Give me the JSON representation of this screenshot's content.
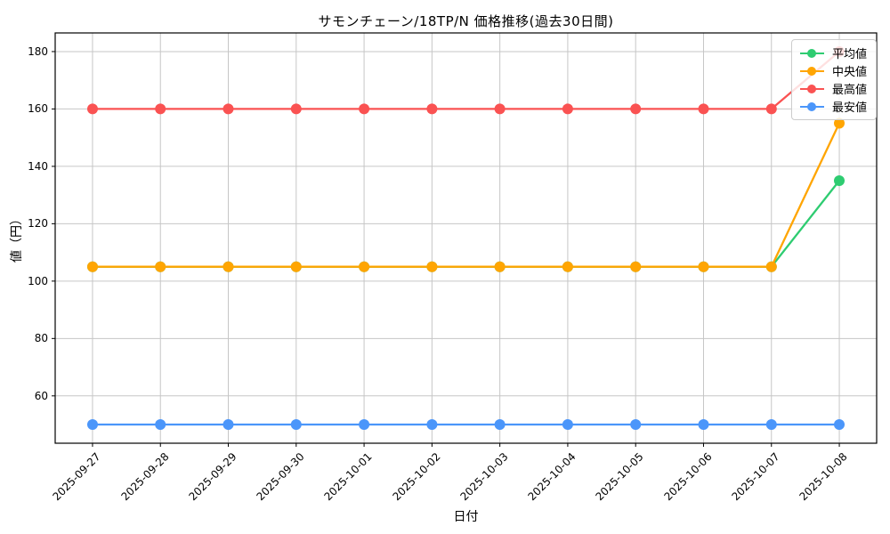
{
  "chart_data": {
    "type": "line",
    "title": "サモンチェーン/18TP/N 価格推移(過去30日間)",
    "xlabel": "日付",
    "ylabel": "値（円）",
    "categories": [
      "2025-09-27",
      "2025-09-28",
      "2025-09-29",
      "2025-09-30",
      "2025-10-01",
      "2025-10-02",
      "2025-10-03",
      "2025-10-04",
      "2025-10-05",
      "2025-10-06",
      "2025-10-07",
      "2025-10-08"
    ],
    "series": [
      {
        "key": "average",
        "name": "平均値",
        "color": "#2ecc71",
        "values": [
          105,
          105,
          105,
          105,
          105,
          105,
          105,
          105,
          105,
          105,
          105,
          135
        ]
      },
      {
        "key": "median",
        "name": "中央値",
        "color": "#ffa502",
        "values": [
          105,
          105,
          105,
          105,
          105,
          105,
          105,
          105,
          105,
          105,
          105,
          155
        ]
      },
      {
        "key": "max",
        "name": "最高値",
        "color": "#fa5252",
        "values": [
          160,
          160,
          160,
          160,
          160,
          160,
          160,
          160,
          160,
          160,
          160,
          180
        ]
      },
      {
        "key": "min",
        "name": "最安値",
        "color": "#4b96fa",
        "values": [
          50,
          50,
          50,
          50,
          50,
          50,
          50,
          50,
          50,
          50,
          50,
          50
        ]
      }
    ],
    "yticks": [
      60,
      80,
      100,
      120,
      140,
      160,
      180
    ],
    "ylim": [
      43.5,
      186.5
    ],
    "grid": true,
    "grid_color": "#c6c6c6",
    "axis_color": "#000000",
    "legend_position": "upper right"
  }
}
